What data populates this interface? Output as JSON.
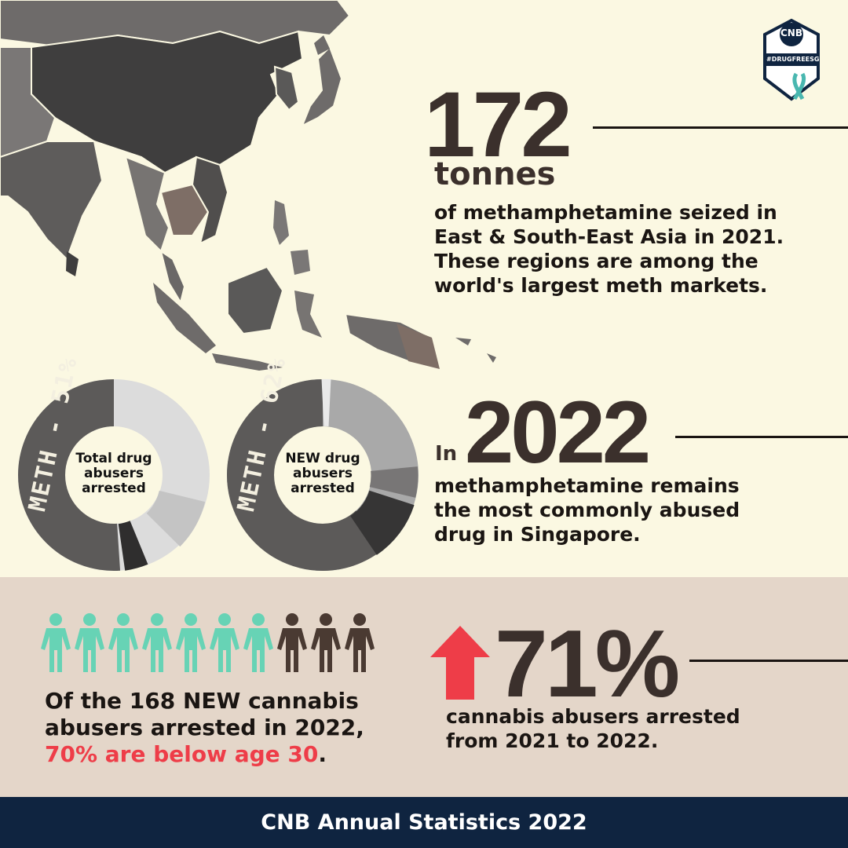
{
  "logo": {
    "text": "CNB",
    "tagline": "#DRUGFREESG",
    "colors": {
      "navy": "#0f2440",
      "teal": "#49b7b0",
      "red": "#e23c47"
    }
  },
  "stat_meth_seized": {
    "number": "172",
    "unit": "tonnes",
    "lines": [
      "of methamphetamine seized in",
      "East & South-East Asia in 2021.",
      "These regions are among the",
      "world's largest meth markets."
    ]
  },
  "stat_2022": {
    "prefix": "In",
    "year": "2022",
    "lines": [
      "methamphetamine remains",
      "the most commonly abused",
      "drug in Singapore."
    ]
  },
  "donuts": [
    {
      "center_lines": [
        "Total drug",
        "abusers",
        "arrested"
      ],
      "arc_label": "METH - 51%",
      "meth_share": 51
    },
    {
      "center_lines": [
        "NEW drug",
        "abusers",
        "arrested"
      ],
      "arc_label": "METH - 62%",
      "meth_share": 62
    }
  ],
  "cannabis_people": {
    "total_icons": 10,
    "teal_icons": 7,
    "teal_color": "#67d3b5",
    "brown_color": "#4a3a32",
    "line1": "Of the 168 NEW cannabis",
    "line2": "abusers arrested in 2022,",
    "highlight": "70% are below age 30",
    "highlight_end": "."
  },
  "stat_cannabis_increase": {
    "number": "71%",
    "arrow_color": "#ee3d48",
    "lines": [
      "cannabis abusers arrested",
      "from 2021 to 2022."
    ]
  },
  "footer": {
    "text": "CNB Annual Statistics 2022"
  },
  "colors": {
    "cream": "#fbf8e2",
    "band": "#e4d6c9",
    "navy": "#0f2440",
    "dark_text": "#3b302c",
    "accent_red": "#ee3d48"
  }
}
